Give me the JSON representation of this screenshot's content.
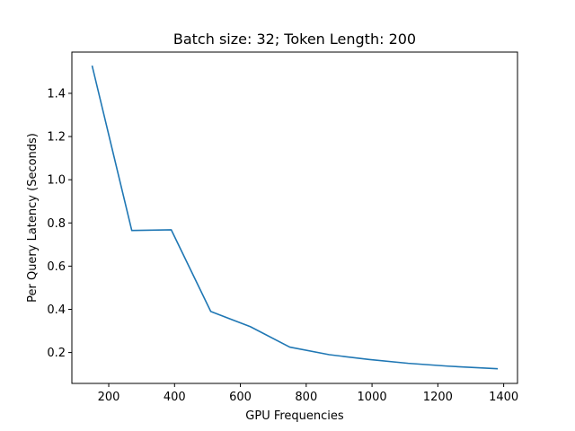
{
  "chart_data": {
    "type": "line",
    "title": "Batch size: 32; Token Length: 200",
    "xlabel": "GPU Frequencies",
    "ylabel": "Per Query Latency (Seconds)",
    "xlim": [
      88,
      1442
    ],
    "ylim": [
      0.057,
      1.591
    ],
    "xticks": [
      200,
      400,
      600,
      800,
      1000,
      1200,
      1400
    ],
    "yticks": [
      0.2,
      0.4,
      0.6,
      0.8,
      1.0,
      1.2,
      1.4
    ],
    "xtick_labels": [
      "200",
      "400",
      "600",
      "800",
      "1000",
      "1200",
      "1400"
    ],
    "ytick_labels": [
      "0.2",
      "0.4",
      "0.6",
      "0.8",
      "1.0",
      "1.2",
      "1.4"
    ],
    "grid": false,
    "series": [
      {
        "color": "#1f77b4",
        "x": [
          150,
          270,
          390,
          510,
          630,
          750,
          870,
          990,
          1110,
          1230,
          1380
        ],
        "y": [
          1.525,
          0.765,
          0.768,
          0.39,
          0.32,
          0.225,
          0.19,
          0.168,
          0.15,
          0.137,
          0.125
        ]
      }
    ]
  }
}
